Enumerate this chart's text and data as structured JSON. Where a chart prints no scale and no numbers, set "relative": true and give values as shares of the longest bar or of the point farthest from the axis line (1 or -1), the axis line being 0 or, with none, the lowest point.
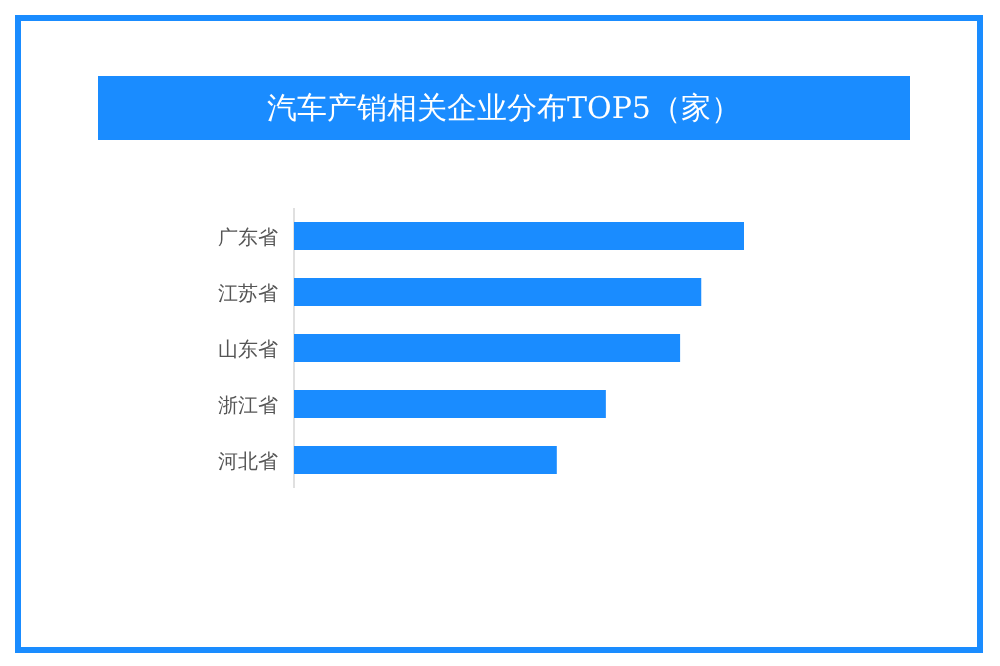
{
  "chart_data": {
    "type": "bar",
    "orientation": "horizontal",
    "relative": true,
    "title": "汽车产销相关企业分布TOP5（家）",
    "categories": [
      "广东省",
      "江苏省",
      "山东省",
      "浙江省",
      "河北省"
    ],
    "values": [
      1,
      0.905,
      0.858,
      0.693,
      0.584
    ],
    "color": "#1a8cff"
  }
}
